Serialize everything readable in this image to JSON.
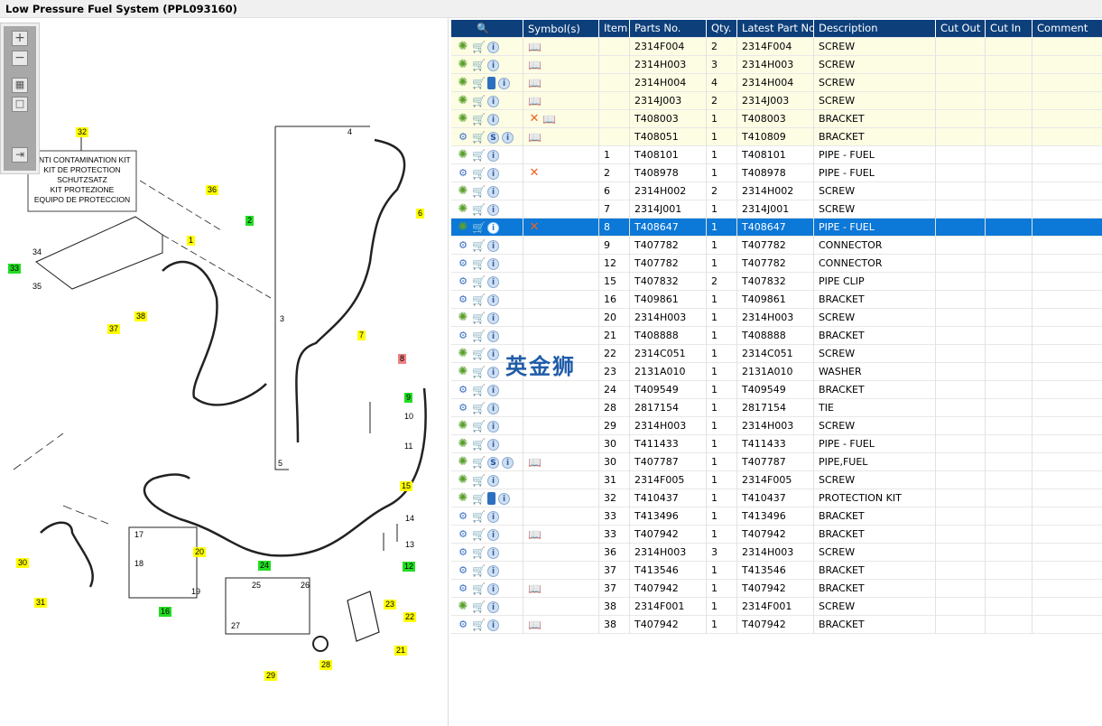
{
  "title": "Low Pressure Fuel System (PPL093160)",
  "toolbar": {
    "zoom_in": "+",
    "zoom_out": "−",
    "fit": "▦",
    "actual": "□",
    "export": "⇥"
  },
  "kit_box": [
    "ANTI CONTAMINATION KIT",
    "KIT DE PROTECTION",
    "SCHUTZSATZ",
    "KIT PROTEZIONE",
    "EQUIPO DE PROTECCION"
  ],
  "callouts": [
    "32",
    "36",
    "2",
    "1",
    "33",
    "34",
    "35",
    "37",
    "38",
    "4",
    "6",
    "3",
    "7",
    "8",
    "9",
    "10",
    "11",
    "5",
    "15",
    "14",
    "13",
    "12",
    "30",
    "31",
    "17",
    "20",
    "18",
    "19",
    "16",
    "24",
    "25",
    "26",
    "27",
    "23",
    "22",
    "21",
    "28",
    "29"
  ],
  "watermark": "英金狮",
  "table": {
    "headers": [
      "",
      "Symbol(s)",
      "Item",
      "Parts No.",
      "Qty.",
      "Latest Part No.",
      "Description",
      "Cut Out",
      "Cut In",
      "Comment"
    ],
    "rows": [
      {
        "gear": "green",
        "extra": "",
        "sym": [
          "book"
        ],
        "item": "",
        "part": "2314F004",
        "qty": "2",
        "latest": "2314F004",
        "desc": "SCREW",
        "hl": "yellow"
      },
      {
        "gear": "green",
        "extra": "",
        "sym": [
          "book"
        ],
        "item": "",
        "part": "2314H003",
        "qty": "3",
        "latest": "2314H003",
        "desc": "SCREW",
        "hl": "yellow"
      },
      {
        "gear": "green",
        "extra": "manual",
        "sym": [
          "book"
        ],
        "item": "",
        "part": "2314H004",
        "qty": "4",
        "latest": "2314H004",
        "desc": "SCREW",
        "hl": "yellow"
      },
      {
        "gear": "green",
        "extra": "",
        "sym": [
          "book"
        ],
        "item": "",
        "part": "2314J003",
        "qty": "2",
        "latest": "2314J003",
        "desc": "SCREW",
        "hl": "yellow"
      },
      {
        "gear": "green",
        "extra": "",
        "sym": [
          "x",
          "book"
        ],
        "item": "",
        "part": "T408003",
        "qty": "1",
        "latest": "T408003",
        "desc": "BRACKET",
        "hl": "yellow"
      },
      {
        "gear": "blue",
        "extra": "S",
        "sym": [
          "book"
        ],
        "item": "",
        "part": "T408051",
        "qty": "1",
        "latest": "T410809",
        "desc": "BRACKET",
        "hl": "yellow"
      },
      {
        "gear": "green",
        "extra": "",
        "sym": [],
        "item": "1",
        "part": "T408101",
        "qty": "1",
        "latest": "T408101",
        "desc": "PIPE - FUEL",
        "hl": ""
      },
      {
        "gear": "blue",
        "extra": "",
        "sym": [
          "x"
        ],
        "item": "2",
        "part": "T408978",
        "qty": "1",
        "latest": "T408978",
        "desc": "PIPE - FUEL",
        "hl": ""
      },
      {
        "gear": "green",
        "extra": "",
        "sym": [],
        "item": "6",
        "part": "2314H002",
        "qty": "2",
        "latest": "2314H002",
        "desc": "SCREW",
        "hl": ""
      },
      {
        "gear": "green",
        "extra": "",
        "sym": [],
        "item": "7",
        "part": "2314J001",
        "qty": "1",
        "latest": "2314J001",
        "desc": "SCREW",
        "hl": ""
      },
      {
        "gear": "green",
        "extra": "",
        "sym": [
          "x"
        ],
        "item": "8",
        "part": "T408647",
        "qty": "1",
        "latest": "T408647",
        "desc": "PIPE - FUEL",
        "hl": "selected"
      },
      {
        "gear": "blue",
        "extra": "",
        "sym": [],
        "item": "9",
        "part": "T407782",
        "qty": "1",
        "latest": "T407782",
        "desc": "CONNECTOR",
        "hl": ""
      },
      {
        "gear": "blue",
        "extra": "",
        "sym": [],
        "item": "12",
        "part": "T407782",
        "qty": "1",
        "latest": "T407782",
        "desc": "CONNECTOR",
        "hl": ""
      },
      {
        "gear": "blue",
        "extra": "",
        "sym": [],
        "item": "15",
        "part": "T407832",
        "qty": "2",
        "latest": "T407832",
        "desc": "PIPE CLIP",
        "hl": ""
      },
      {
        "gear": "blue",
        "extra": "",
        "sym": [],
        "item": "16",
        "part": "T409861",
        "qty": "1",
        "latest": "T409861",
        "desc": "BRACKET",
        "hl": ""
      },
      {
        "gear": "green",
        "extra": "",
        "sym": [],
        "item": "20",
        "part": "2314H003",
        "qty": "1",
        "latest": "2314H003",
        "desc": "SCREW",
        "hl": ""
      },
      {
        "gear": "blue",
        "extra": "",
        "sym": [],
        "item": "21",
        "part": "T408888",
        "qty": "1",
        "latest": "T408888",
        "desc": "BRACKET",
        "hl": ""
      },
      {
        "gear": "green",
        "extra": "",
        "sym": [],
        "item": "22",
        "part": "2314C051",
        "qty": "1",
        "latest": "2314C051",
        "desc": "SCREW",
        "hl": ""
      },
      {
        "gear": "green",
        "extra": "",
        "sym": [],
        "item": "23",
        "part": "2131A010",
        "qty": "1",
        "latest": "2131A010",
        "desc": "WASHER",
        "hl": ""
      },
      {
        "gear": "blue",
        "extra": "",
        "sym": [],
        "item": "24",
        "part": "T409549",
        "qty": "1",
        "latest": "T409549",
        "desc": "BRACKET",
        "hl": ""
      },
      {
        "gear": "blue",
        "extra": "",
        "sym": [],
        "item": "28",
        "part": "2817154",
        "qty": "1",
        "latest": "2817154",
        "desc": "TIE",
        "hl": ""
      },
      {
        "gear": "green",
        "extra": "",
        "sym": [],
        "item": "29",
        "part": "2314H003",
        "qty": "1",
        "latest": "2314H003",
        "desc": "SCREW",
        "hl": ""
      },
      {
        "gear": "green",
        "extra": "",
        "sym": [],
        "item": "30",
        "part": "T411433",
        "qty": "1",
        "latest": "T411433",
        "desc": "PIPE - FUEL",
        "hl": ""
      },
      {
        "gear": "green",
        "extra": "S",
        "sym": [
          "book"
        ],
        "item": "30",
        "part": "T407787",
        "qty": "1",
        "latest": "T407787",
        "desc": "PIPE,FUEL",
        "hl": ""
      },
      {
        "gear": "green",
        "extra": "",
        "sym": [],
        "item": "31",
        "part": "2314F005",
        "qty": "1",
        "latest": "2314F005",
        "desc": "SCREW",
        "hl": ""
      },
      {
        "gear": "green",
        "extra": "manual",
        "sym": [],
        "item": "32",
        "part": "T410437",
        "qty": "1",
        "latest": "T410437",
        "desc": "PROTECTION KIT",
        "hl": ""
      },
      {
        "gear": "blue",
        "extra": "",
        "sym": [],
        "item": "33",
        "part": "T413496",
        "qty": "1",
        "latest": "T413496",
        "desc": "BRACKET",
        "hl": ""
      },
      {
        "gear": "blue",
        "extra": "",
        "sym": [
          "book"
        ],
        "item": "33",
        "part": "T407942",
        "qty": "1",
        "latest": "T407942",
        "desc": "BRACKET",
        "hl": ""
      },
      {
        "gear": "blue",
        "extra": "",
        "sym": [],
        "item": "36",
        "part": "2314H003",
        "qty": "3",
        "latest": "2314H003",
        "desc": "SCREW",
        "hl": ""
      },
      {
        "gear": "blue",
        "extra": "",
        "sym": [],
        "item": "37",
        "part": "T413546",
        "qty": "1",
        "latest": "T413546",
        "desc": "BRACKET",
        "hl": ""
      },
      {
        "gear": "blue",
        "extra": "",
        "sym": [
          "book"
        ],
        "item": "37",
        "part": "T407942",
        "qty": "1",
        "latest": "T407942",
        "desc": "BRACKET",
        "hl": ""
      },
      {
        "gear": "green",
        "extra": "",
        "sym": [],
        "item": "38",
        "part": "2314F001",
        "qty": "1",
        "latest": "2314F001",
        "desc": "SCREW",
        "hl": ""
      },
      {
        "gear": "blue",
        "extra": "",
        "sym": [
          "book"
        ],
        "item": "38",
        "part": "T407942",
        "qty": "1",
        "latest": "T407942",
        "desc": "BRACKET",
        "hl": ""
      }
    ]
  },
  "colors": {
    "header": "#0d3f7a",
    "selected": "#0c78d7",
    "highlight": "#fdfde4",
    "callout_yellow": "#ffff00",
    "callout_green": "#22dd22",
    "callout_red": "#f08080"
  }
}
